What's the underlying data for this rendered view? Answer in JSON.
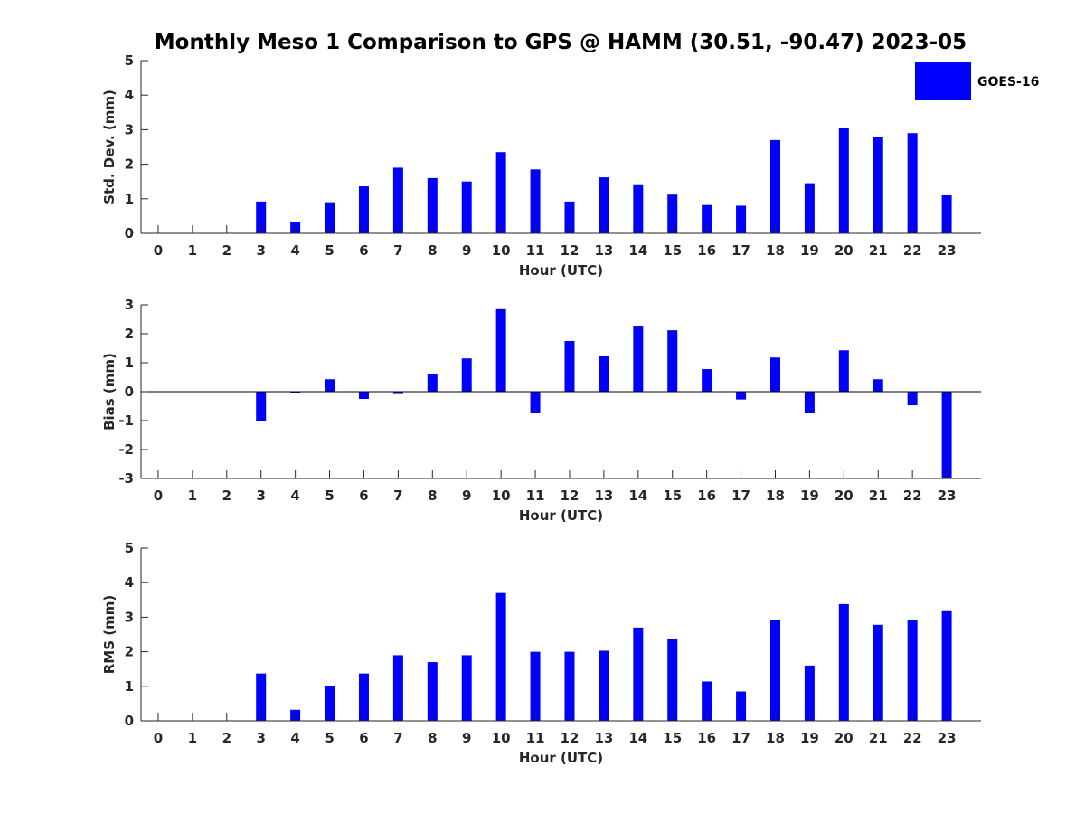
{
  "chart_data": {
    "type": "bar",
    "title": "Monthly Meso 1 Comparison to GPS @ HAMM (30.51, -90.47) 2023-05",
    "legend": {
      "label": "GOES-16",
      "placement": "top-right",
      "color": "#0000ff"
    },
    "bar_color": "#0000ff",
    "categories": [
      "0",
      "1",
      "2",
      "3",
      "4",
      "5",
      "6",
      "7",
      "8",
      "9",
      "10",
      "11",
      "12",
      "13",
      "14",
      "15",
      "16",
      "17",
      "18",
      "19",
      "20",
      "21",
      "22",
      "23"
    ],
    "panels": [
      {
        "ylabel": "Std. Dev. (mm)",
        "xlabel": "Hour (UTC)",
        "ylim": [
          0,
          5
        ],
        "yticks": [
          "0",
          "1",
          "2",
          "3",
          "4",
          "5"
        ],
        "values": [
          0,
          0,
          0,
          0.92,
          0.32,
          0.9,
          1.36,
          1.9,
          1.6,
          1.5,
          2.35,
          1.85,
          0.92,
          1.62,
          1.42,
          1.12,
          0.82,
          0.8,
          2.7,
          1.45,
          3.06,
          2.78,
          2.9,
          1.1
        ]
      },
      {
        "ylabel": "Bias (mm)",
        "xlabel": "Hour (UTC)",
        "ylim": [
          -3,
          3
        ],
        "yticks": [
          "-3",
          "-2",
          "-1",
          "0",
          "1",
          "2",
          "3"
        ],
        "values": [
          0,
          0,
          0,
          -1.02,
          -0.05,
          0.43,
          -0.25,
          -0.08,
          0.62,
          1.15,
          2.85,
          -0.75,
          1.75,
          1.22,
          2.28,
          2.12,
          0.78,
          -0.27,
          1.18,
          -0.75,
          1.43,
          0.43,
          -0.47,
          -3.0
        ]
      },
      {
        "ylabel": "RMS (mm)",
        "xlabel": "Hour (UTC)",
        "ylim": [
          0,
          5
        ],
        "yticks": [
          "0",
          "1",
          "2",
          "3",
          "4",
          "5"
        ],
        "values": [
          0,
          0,
          0,
          1.37,
          0.32,
          1.0,
          1.37,
          1.9,
          1.7,
          1.9,
          3.7,
          2.0,
          2.0,
          2.03,
          2.7,
          2.38,
          1.14,
          0.85,
          2.93,
          1.6,
          3.38,
          2.78,
          2.93,
          3.2
        ]
      }
    ]
  }
}
